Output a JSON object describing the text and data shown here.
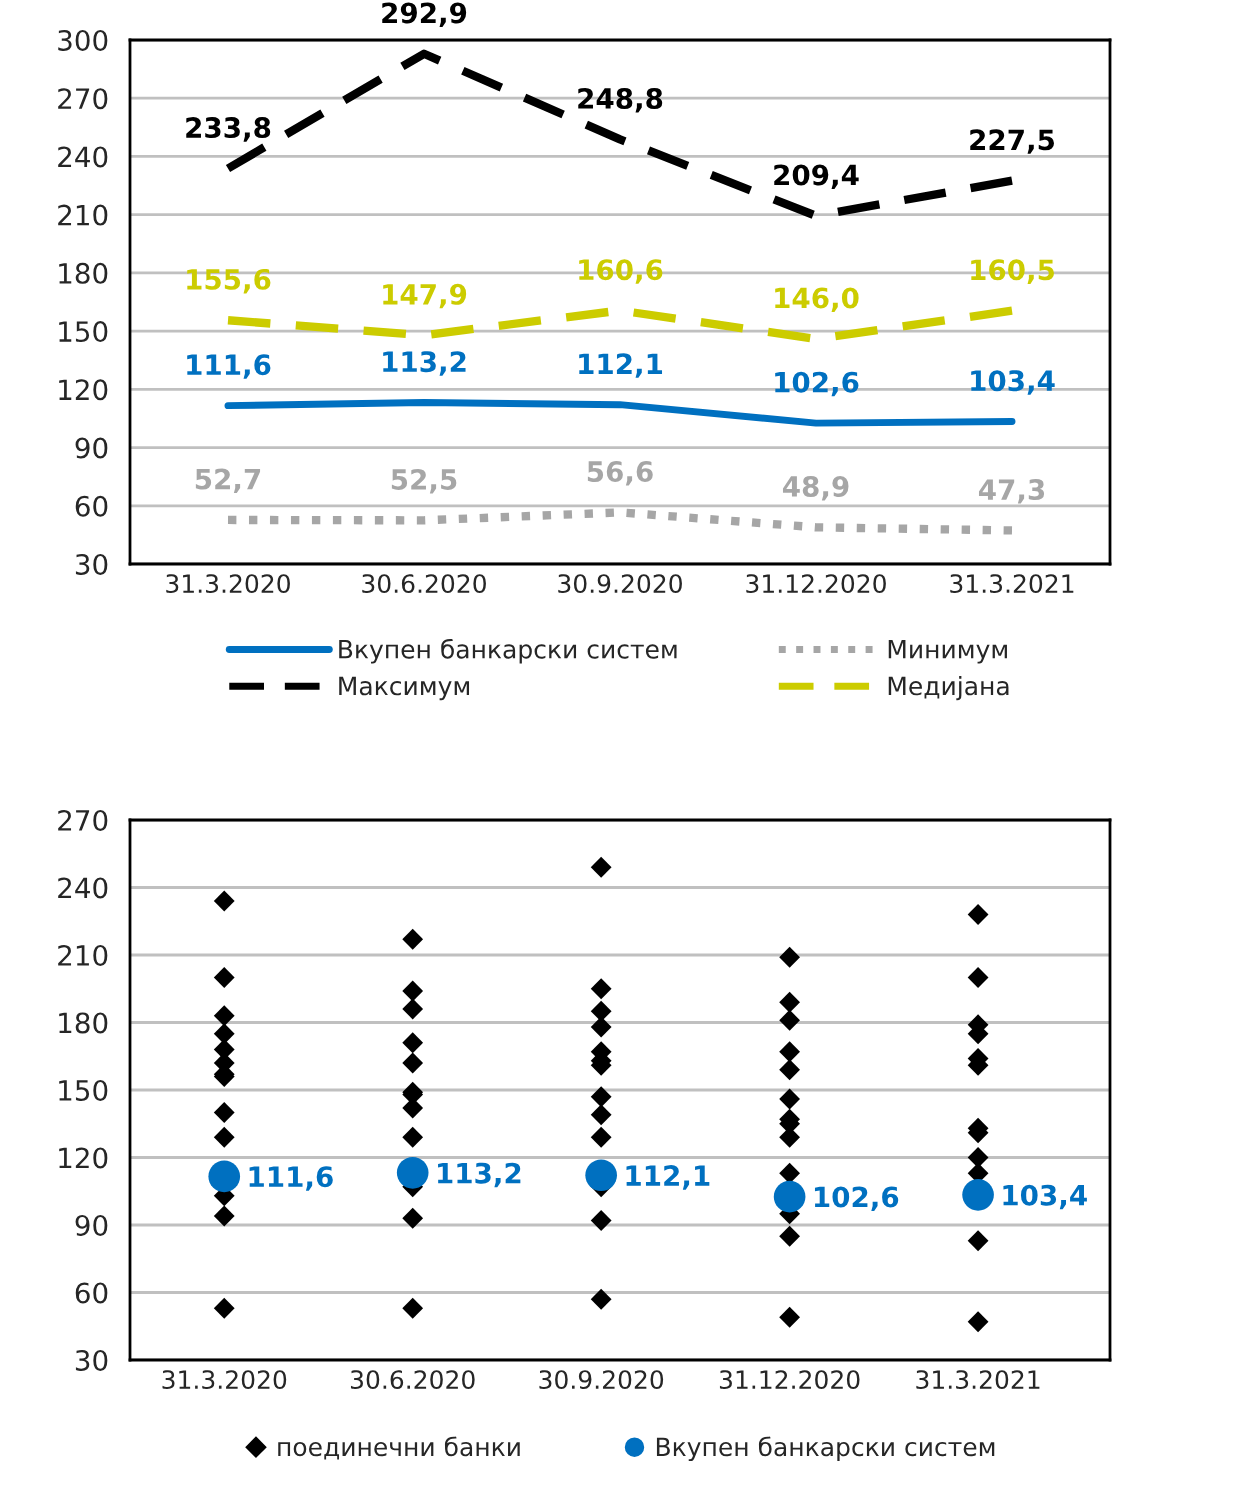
{
  "chart_data": [
    {
      "type": "line",
      "categories": [
        "31.3.2020",
        "30.6.2020",
        "30.9.2020",
        "31.12.2020",
        "31.3.2021"
      ],
      "ylim": [
        30,
        300
      ],
      "yticks": [
        30,
        60,
        90,
        120,
        150,
        180,
        210,
        240,
        270,
        300
      ],
      "grid": "y",
      "legend": "bottom",
      "series": [
        {
          "name": "Вкупен банкарски систем",
          "color": "#0070c0",
          "line_style": "solid",
          "values": [
            111.6,
            113.2,
            112.1,
            102.6,
            103.4
          ],
          "value_labels": [
            "111,6",
            "113,2",
            "112,1",
            "102,6",
            "103,4"
          ]
        },
        {
          "name": "Максимум",
          "color": "#000000",
          "line_style": "dashed",
          "values": [
            233.8,
            292.9,
            248.8,
            209.4,
            227.5
          ],
          "value_labels": [
            "233,8",
            "292,9",
            "248,8",
            "209,4",
            "227,5"
          ]
        },
        {
          "name": "Минимум",
          "color": "#a6a6a6",
          "line_style": "dotted",
          "values": [
            52.7,
            52.5,
            56.6,
            48.9,
            47.3
          ],
          "value_labels": [
            "52,7",
            "52,5",
            "56,6",
            "48,9",
            "47,3"
          ]
        },
        {
          "name": "Медијана",
          "color": "#cccc00",
          "line_style": "dashed",
          "values": [
            155.6,
            147.9,
            160.6,
            146.0,
            160.5
          ],
          "value_labels": [
            "155,6",
            "147,9",
            "160,6",
            "146,0",
            "160,5"
          ]
        }
      ]
    },
    {
      "type": "scatter",
      "categories": [
        "31.3.2020",
        "30.6.2020",
        "30.9.2020",
        "31.12.2020",
        "31.3.2021"
      ],
      "ylim": [
        30,
        270
      ],
      "yticks": [
        30,
        60,
        90,
        120,
        150,
        180,
        210,
        240,
        270
      ],
      "grid": "y",
      "legend": "bottom",
      "series": [
        {
          "name": "поединечни банки",
          "color": "#000000",
          "marker": "diamond",
          "x": [
            "31.3.2020",
            "31.3.2020",
            "31.3.2020",
            "31.3.2020",
            "31.3.2020",
            "31.3.2020",
            "31.3.2020",
            "31.3.2020",
            "31.3.2020",
            "31.3.2020",
            "31.3.2020",
            "31.3.2020",
            "31.3.2020",
            "30.6.2020",
            "30.6.2020",
            "30.6.2020",
            "30.6.2020",
            "30.6.2020",
            "30.6.2020",
            "30.6.2020",
            "30.6.2020",
            "30.6.2020",
            "30.6.2020",
            "30.6.2020",
            "30.6.2020",
            "30.9.2020",
            "30.9.2020",
            "30.9.2020",
            "30.9.2020",
            "30.9.2020",
            "30.9.2020",
            "30.9.2020",
            "30.9.2020",
            "30.9.2020",
            "30.9.2020",
            "30.9.2020",
            "30.9.2020",
            "30.9.2020",
            "31.12.2020",
            "31.12.2020",
            "31.12.2020",
            "31.12.2020",
            "31.12.2020",
            "31.12.2020",
            "31.12.2020",
            "31.12.2020",
            "31.12.2020",
            "31.12.2020",
            "31.12.2020",
            "31.12.2020",
            "31.12.2020",
            "31.3.2021",
            "31.3.2021",
            "31.3.2021",
            "31.3.2021",
            "31.3.2021",
            "31.3.2021",
            "31.3.2021",
            "31.3.2021",
            "31.3.2021",
            "31.3.2021",
            "31.3.2021",
            "31.3.2021"
          ],
          "values": [
            234,
            200,
            183,
            175,
            168,
            162,
            157,
            156,
            140,
            129,
            103,
            94,
            53,
            217,
            194,
            186,
            171,
            162,
            149,
            148,
            142,
            129,
            107,
            93,
            53,
            249,
            195,
            185,
            178,
            167,
            163,
            161,
            147,
            139,
            129,
            107,
            92,
            57,
            209,
            189,
            181,
            167,
            159,
            146,
            137,
            135,
            129,
            113,
            95,
            85,
            49,
            228,
            200,
            179,
            175,
            164,
            161,
            133,
            131,
            120,
            113,
            83,
            47
          ]
        },
        {
          "name": "Вкупен банкарски систем",
          "color": "#0070c0",
          "marker": "circle",
          "values": [
            111.6,
            113.2,
            112.1,
            102.6,
            103.4
          ],
          "value_labels": [
            "111,6",
            "113,2",
            "112,1",
            "102,6",
            "103,4"
          ]
        }
      ]
    }
  ]
}
